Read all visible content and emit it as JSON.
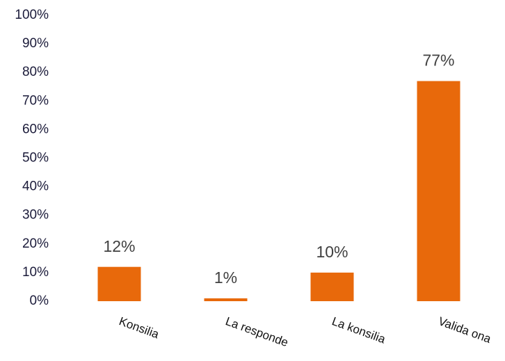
{
  "chart_data": {
    "type": "bar",
    "categories": [
      "Konsilia",
      "La responde",
      "La konsilia",
      "Valida ona"
    ],
    "values": [
      12,
      1,
      10,
      77
    ],
    "value_labels": [
      "12%",
      "1%",
      "10%",
      "77%"
    ],
    "color": "#e8690b",
    "ylim": [
      0,
      100
    ],
    "yticks": [
      {
        "value": 0,
        "label": "0%"
      },
      {
        "value": 10,
        "label": "10%"
      },
      {
        "value": 20,
        "label": "20%"
      },
      {
        "value": 30,
        "label": "30%"
      },
      {
        "value": 40,
        "label": "40%"
      },
      {
        "value": 50,
        "label": "50%"
      },
      {
        "value": 60,
        "label": "60%"
      },
      {
        "value": 70,
        "label": "70%"
      },
      {
        "value": 80,
        "label": "80%"
      },
      {
        "value": 90,
        "label": "90%"
      },
      {
        "value": 100,
        "label": "100%"
      }
    ],
    "grid": false
  }
}
